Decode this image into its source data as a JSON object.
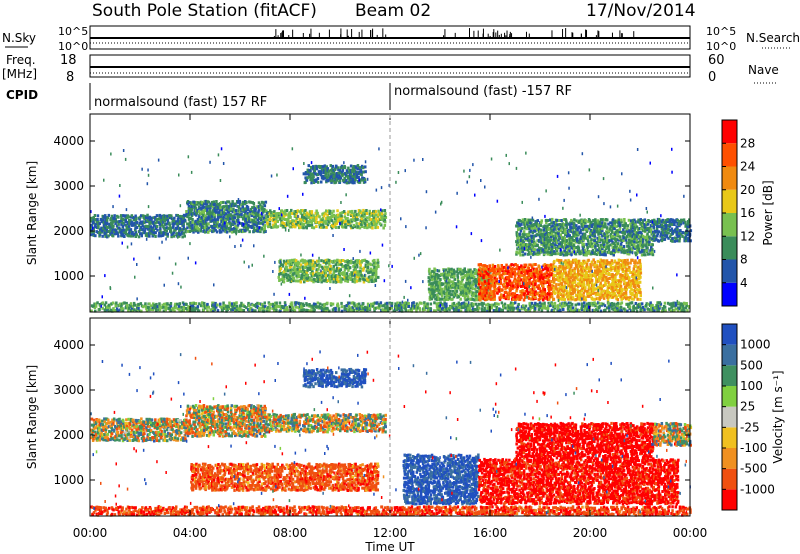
{
  "header": {
    "station": "South Pole Station (fitACF)",
    "beam": "Beam 02",
    "date": "17/Nov/2014"
  },
  "sky_panel": {
    "left_label": "N.Sky",
    "right_label": "N.Search",
    "left_ticks": [
      "10^5",
      "10^0"
    ],
    "right_ticks": [
      "10^5",
      "10^0"
    ]
  },
  "freq_panel": {
    "left_label": "Freq.",
    "left_unit": "[MHz]",
    "left_ticks": [
      "18",
      "8"
    ],
    "right_label": "Nave",
    "right_ticks": [
      "60",
      "0"
    ]
  },
  "cpid_panel": {
    "label": "CPID",
    "segments": [
      {
        "text": "normalsound (fast) 157 RF",
        "start": 0
      },
      {
        "text": "normalsound (fast) -157 RF",
        "start": 12
      }
    ]
  },
  "colors": {
    "power_scale": [
      "#0000ff",
      "#2255aa",
      "#3a8c5a",
      "#78c050",
      "#e8c818",
      "#f08a10",
      "#ff5000",
      "#ff0000"
    ],
    "velocity_scale": [
      "#2050c0",
      "#3a6fa0",
      "#3f9060",
      "#80d040",
      "#c8c8c0",
      "#f0c020",
      "#f09020",
      "#f05010",
      "#ff0000"
    ]
  },
  "chart_data": [
    {
      "type": "heatmap",
      "name": "power",
      "ylabel": "Slant Range [km]",
      "y_ticks": [
        1000,
        2000,
        3000,
        4000
      ],
      "ylim": [
        200,
        4600
      ],
      "xlim": [
        0,
        24
      ],
      "colorbar": {
        "label": "Power [dB]",
        "ticks": [
          4,
          8,
          12,
          16,
          20,
          24,
          28
        ],
        "range": [
          0,
          32
        ]
      },
      "echo_bands": [
        {
          "t0": 0,
          "t1": 3.8,
          "r0": 1900,
          "r1": 2400,
          "level": 8
        },
        {
          "t0": 3.8,
          "t1": 7,
          "r0": 2000,
          "r1": 2700,
          "level": 9
        },
        {
          "t0": 7,
          "t1": 11.8,
          "r0": 2100,
          "r1": 2500,
          "level": 14
        },
        {
          "t0": 8.5,
          "t1": 11,
          "r0": 3100,
          "r1": 3500,
          "level": 8
        },
        {
          "t0": 7.5,
          "t1": 11.5,
          "r0": 900,
          "r1": 1400,
          "level": 13
        },
        {
          "t0": 13.5,
          "t1": 16,
          "r0": 500,
          "r1": 1200,
          "level": 12
        },
        {
          "t0": 15.5,
          "t1": 18.5,
          "r0": 500,
          "r1": 1300,
          "level": 26
        },
        {
          "t0": 18.5,
          "t1": 22,
          "r0": 500,
          "r1": 1400,
          "level": 20
        },
        {
          "t0": 17,
          "t1": 22.5,
          "r0": 1500,
          "r1": 2300,
          "level": 10
        },
        {
          "t0": 22.5,
          "t1": 24,
          "r0": 1800,
          "r1": 2300,
          "level": 8
        },
        {
          "t0": 0,
          "t1": 24,
          "r0": 250,
          "r1": 450,
          "level": 11
        }
      ]
    },
    {
      "type": "heatmap",
      "name": "velocity",
      "ylabel": "Slant Range [km]",
      "y_ticks": [
        1000,
        2000,
        3000,
        4000
      ],
      "ylim": [
        200,
        4600
      ],
      "xlim": [
        0,
        24
      ],
      "x_ticks": [
        "00:00",
        "04:00",
        "08:00",
        "12:00",
        "16:00",
        "20:00",
        "00:00"
      ],
      "xlabel": "Time UT",
      "colorbar": {
        "label": "Velocity [m s⁻¹]",
        "ticks": [
          "-1000",
          "-500",
          "-100",
          "-25",
          "25",
          "100",
          "500",
          "1000"
        ],
        "range": [
          -1200,
          1200
        ]
      },
      "echo_bands": [
        {
          "t0": 0,
          "t1": 3.8,
          "r0": 1900,
          "r1": 2400,
          "level": 0
        },
        {
          "t0": 3.8,
          "t1": 7,
          "r0": 2000,
          "r1": 2700,
          "level": 10
        },
        {
          "t0": 7,
          "t1": 11.8,
          "r0": 2100,
          "r1": 2500,
          "level": 0
        },
        {
          "t0": 8.5,
          "t1": 11,
          "r0": 3100,
          "r1": 3500,
          "level": -300
        },
        {
          "t0": 4,
          "t1": 11.5,
          "r0": 800,
          "r1": 1400,
          "level": 150
        },
        {
          "t0": 12.5,
          "t1": 15.5,
          "r0": 500,
          "r1": 1600,
          "level": -300
        },
        {
          "t0": 15.5,
          "t1": 23.5,
          "r0": 500,
          "r1": 1500,
          "level": 400
        },
        {
          "t0": 17,
          "t1": 22.5,
          "r0": 1500,
          "r1": 2300,
          "level": 500
        },
        {
          "t0": 22.5,
          "t1": 24,
          "r0": 1800,
          "r1": 2300,
          "level": 0
        },
        {
          "t0": 0,
          "t1": 24,
          "r0": 250,
          "r1": 450,
          "level": 200
        }
      ]
    }
  ]
}
